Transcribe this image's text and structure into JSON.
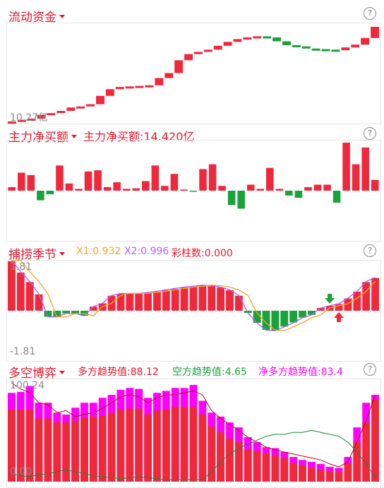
{
  "panel1": {
    "title": "流动资金",
    "min_label": "10.27亿",
    "help": "?"
  },
  "panel2": {
    "title": "主力净买额",
    "value_text": "主力净买额:14.420亿",
    "help": "?"
  },
  "panel3": {
    "title": "捕捞季节",
    "x1_text": "X1:0.932",
    "x2_text": "X2:0.996",
    "bar_text": "彩柱数:0.000",
    "max_label": "1.81",
    "min_label": "-1.81",
    "help": "?"
  },
  "panel4": {
    "title": "多空博弈",
    "long_text": "多方趋势值:88.12",
    "short_text": "空方趋势值:4.65",
    "net_text": "净多方趋势值:83.4",
    "max_label": "100.24",
    "min_label": "0.00",
    "help": "?"
  },
  "colors": {
    "up": "#f0283c",
    "down": "#1aa33a",
    "magenta": "#ff00ff",
    "orange": "#f5a623",
    "purple": "#b05cff",
    "grey": "#8a8a8a"
  },
  "chart_data": [
    {
      "type": "candlestick",
      "title": "流动资金",
      "values": [
        0.0,
        0.3,
        0.5,
        1.2,
        1.5,
        1.9,
        2.5,
        2.7,
        3.1,
        4.6,
        5.8,
        6.2,
        6.3,
        6.4,
        6.5,
        7.8,
        8.7,
        11.0,
        12.1,
        12.5,
        12.9,
        13.6,
        14.3,
        14.8,
        15.1,
        15.3,
        15.1,
        14.4,
        13.7,
        13.5,
        13.1,
        13.0,
        12.9,
        12.8,
        13.3,
        13.8,
        15.0,
        17.0
      ],
      "ylim_label": "10.27亿"
    },
    {
      "type": "bar",
      "title": "主力净买额",
      "values": [
        0.3,
        1.5,
        1.3,
        -0.8,
        -0.3,
        2.1,
        0.6,
        0.15,
        1.6,
        1.7,
        0.3,
        0.7,
        0.15,
        0.2,
        0.8,
        2.1,
        0.4,
        1.4,
        0.1,
        -0.05,
        1.8,
        2.2,
        0.4,
        -1.2,
        -1.5,
        0.5,
        0.15,
        1.9,
        0.15,
        -0.4,
        -0.6,
        0.3,
        0.5,
        0.5,
        -1.0,
        4.0,
        2.2,
        3.6,
        0.9
      ]
    },
    {
      "type": "bar",
      "title": "捕捞季节",
      "ylim": [
        -1.81,
        1.81
      ],
      "values": [
        1.81,
        1.4,
        1.05,
        0.6,
        -0.22,
        -0.22,
        -0.1,
        -0.1,
        -0.18,
        0.15,
        0.27,
        0.55,
        0.62,
        0.62,
        0.62,
        0.66,
        0.7,
        0.75,
        0.8,
        0.85,
        0.88,
        0.92,
        0.9,
        0.85,
        0.75,
        0.55,
        -0.08,
        -0.44,
        -0.7,
        -0.72,
        -0.58,
        -0.43,
        -0.25,
        -0.15,
        0.1,
        0.18,
        0.25,
        0.45,
        0.7,
        1.05,
        1.2
      ]
    },
    {
      "type": "bar",
      "title": "多空博弈",
      "ylim": [
        0,
        100.24
      ],
      "long": [
        90,
        91,
        97,
        80,
        80,
        70,
        68,
        75,
        80,
        80,
        85,
        88,
        93,
        95,
        94,
        85,
        90,
        92,
        95,
        95,
        98,
        82,
        70,
        66,
        60,
        55,
        45,
        40,
        35,
        34,
        30,
        25,
        22,
        20,
        18,
        15,
        14,
        25,
        55,
        80,
        88
      ],
      "net": [
        73,
        73,
        73,
        64,
        64,
        60,
        60,
        62,
        65,
        66,
        67,
        70,
        73,
        74,
        74,
        68,
        72,
        73,
        76,
        76,
        76,
        68,
        56,
        50,
        44,
        40,
        33,
        31,
        29,
        27,
        24,
        19,
        17,
        14,
        12,
        11,
        10,
        18,
        40,
        60,
        83
      ]
    }
  ]
}
